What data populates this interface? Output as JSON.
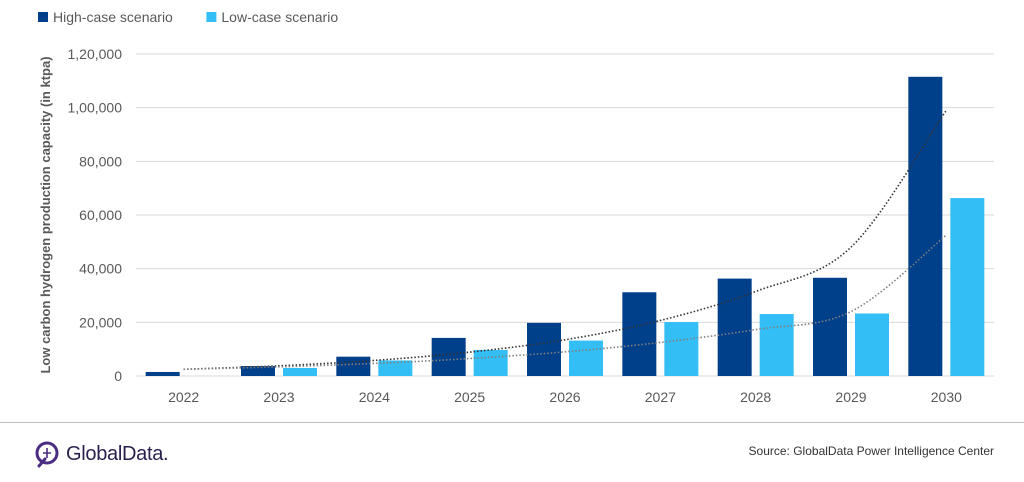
{
  "chart_data": {
    "type": "bar",
    "title": "",
    "xlabel": "",
    "ylabel": "Low carbon hydrogen production capacity (in ktpa)",
    "categories": [
      "2022",
      "2023",
      "2024",
      "2025",
      "2026",
      "2027",
      "2028",
      "2029",
      "2030"
    ],
    "series": [
      {
        "name": "High-case scenario",
        "color": "#003f8a",
        "values": [
          1500,
          3700,
          7200,
          14200,
          19800,
          31200,
          36300,
          36600,
          111500
        ]
      },
      {
        "name": "Low-case scenario",
        "color": "#33bff5",
        "values": [
          0,
          3000,
          5800,
          9700,
          13200,
          20100,
          23100,
          23300,
          66300
        ]
      }
    ],
    "trendlines": [
      {
        "series": "High-case scenario",
        "type": "exponential",
        "color": "#333333",
        "values": [
          2500,
          3800,
          5800,
          8900,
          13500,
          20700,
          31500,
          48000,
          99000
        ]
      },
      {
        "series": "Low-case scenario",
        "type": "exponential",
        "color": "#7f7f7f",
        "values": [
          2500,
          3400,
          4700,
          6500,
          9000,
          12500,
          17300,
          24000,
          52500
        ]
      }
    ],
    "yticks": [
      "0",
      "20,000",
      "40,000",
      "60,000",
      "80,000",
      "1,00,000",
      "1,20,000"
    ],
    "ytick_values": [
      0,
      20000,
      40000,
      60000,
      80000,
      100000,
      120000
    ],
    "ylim": [
      0,
      120000
    ],
    "grid": true,
    "legend_position": "top-left"
  },
  "footer": {
    "logo_text": "GlobalData.",
    "source": "Source: GlobalData Power Intelligence Center"
  },
  "colors": {
    "grid": "#d9d9d9",
    "axis_text": "#595959"
  }
}
